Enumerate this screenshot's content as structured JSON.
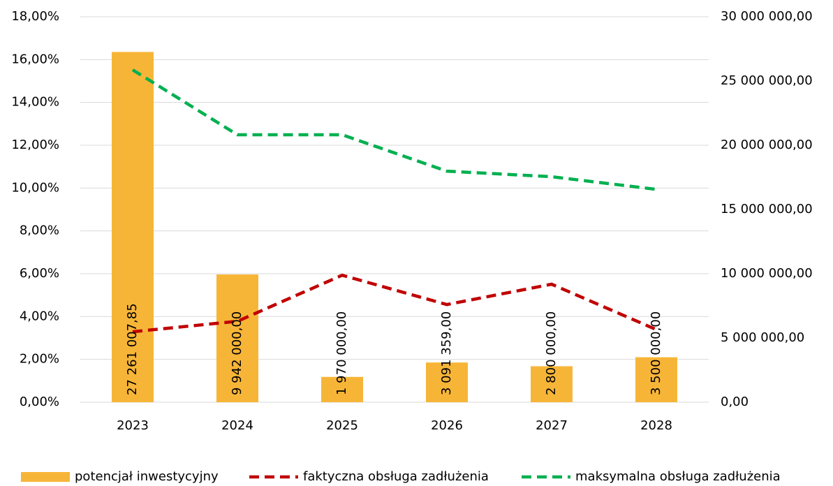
{
  "chart_data": {
    "type": "bar",
    "categories": [
      "2023",
      "2024",
      "2025",
      "2026",
      "2027",
      "2028"
    ],
    "series": [
      {
        "name": "potencjał inwestycyjny",
        "type": "bar",
        "axis": "y2",
        "color": "#f7b538",
        "values": [
          27261007.85,
          9942000,
          1970000,
          3091359,
          2800000,
          3500000
        ],
        "value_labels": [
          "27 261 007,85",
          "9 942 000,00",
          "1 970 000,00",
          "3 091 359,00",
          "2 800 000,00",
          "3 500 000,00"
        ]
      },
      {
        "name": "faktyczna obsługa zadłużenia",
        "type": "line",
        "color": "#c00000",
        "values": [
          3.29,
          3.78,
          5.93,
          4.56,
          5.51,
          3.39
        ]
      },
      {
        "name": "maksymalna obsługa zadłużenia",
        "type": "line",
        "color": "#00b050",
        "values": [
          15.52,
          12.49,
          12.49,
          10.79,
          10.53,
          9.94
        ]
      }
    ],
    "ylim": [
      0,
      18
    ],
    "yticks": [
      {
        "value": 0,
        "label": "0,00%"
      },
      {
        "value": 2,
        "label": "2,00%"
      },
      {
        "value": 4,
        "label": "4,00%"
      },
      {
        "value": 6,
        "label": "6,00%"
      },
      {
        "value": 8,
        "label": "8,00%"
      },
      {
        "value": 10,
        "label": "10,00%"
      },
      {
        "value": 12,
        "label": "12,00%"
      },
      {
        "value": 14,
        "label": "14,00%"
      },
      {
        "value": 16,
        "label": "16,00%"
      },
      {
        "value": 18,
        "label": "18,00%"
      }
    ],
    "y2lim": [
      0,
      30000000
    ],
    "y2ticks": [
      {
        "value": 0,
        "label": "0,00"
      },
      {
        "value": 5000000,
        "label": "5 000 000,00"
      },
      {
        "value": 10000000,
        "label": "10 000 000,00"
      },
      {
        "value": 15000000,
        "label": "15 000 000,00"
      },
      {
        "value": 20000000,
        "label": "20 000 000,00"
      },
      {
        "value": 25000000,
        "label": "25 000 000,00"
      },
      {
        "value": 30000000,
        "label": "30 000 000,00"
      }
    ],
    "grid": true,
    "legend": "bottom"
  }
}
